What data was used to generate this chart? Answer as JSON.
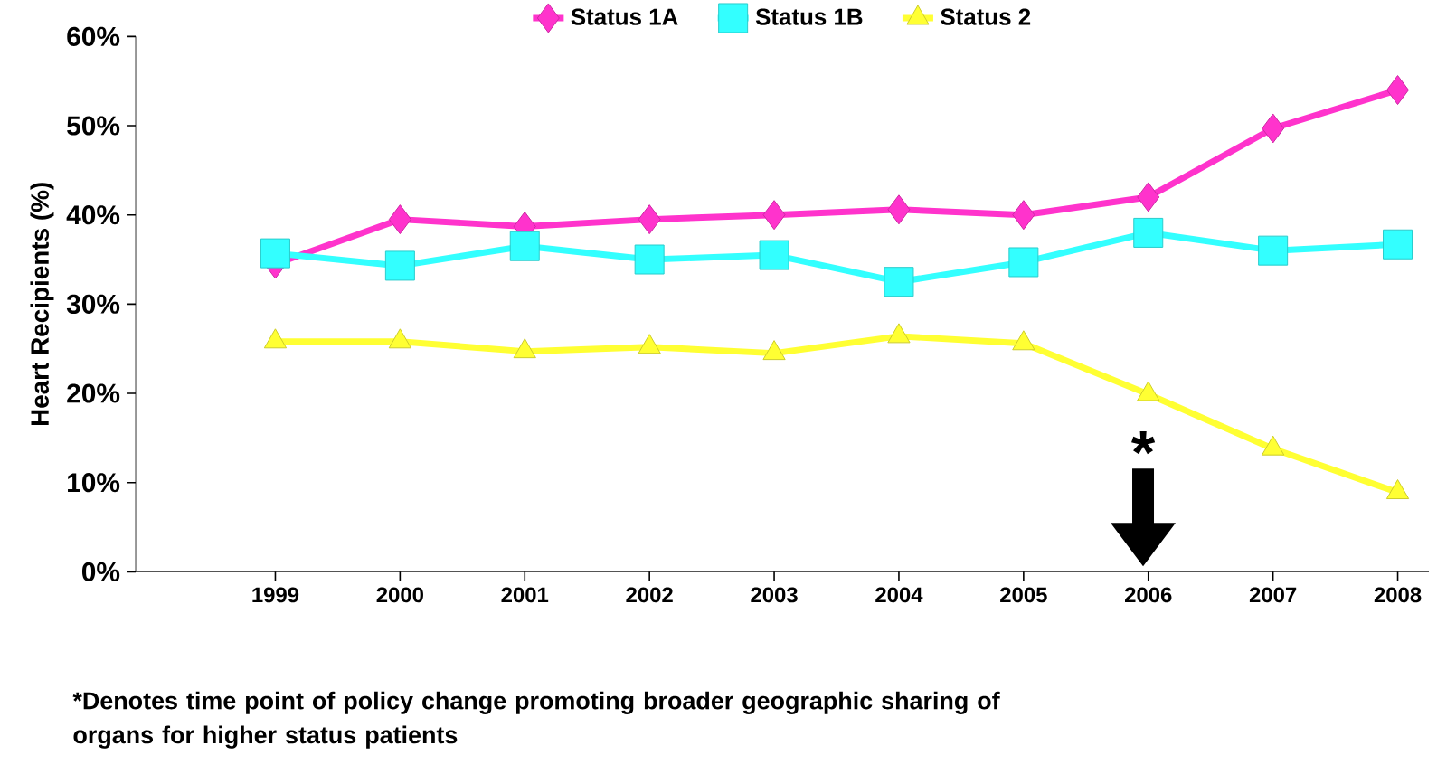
{
  "chart_data": {
    "type": "line",
    "ylabel": "Heart Recipients (%)",
    "categories": [
      "1999",
      "2000",
      "2001",
      "2002",
      "2003",
      "2004",
      "2005",
      "2006",
      "2007",
      "2008"
    ],
    "series": [
      {
        "name": "Status 1A",
        "color": "#ff33cc",
        "marker": "diamond",
        "values": [
          34.5,
          39.5,
          38.7,
          39.5,
          40,
          40.6,
          40,
          42,
          49.7,
          54
        ]
      },
      {
        "name": "Status 1B",
        "color": "#33ffff",
        "marker": "square",
        "values": [
          35.7,
          34.3,
          36.5,
          35,
          35.5,
          32.5,
          34.7,
          38,
          36,
          36.7
        ]
      },
      {
        "name": "Status 2",
        "color": "#ffff33",
        "marker": "triangle",
        "values": [
          25.8,
          25.8,
          24.7,
          25.2,
          24.5,
          26.4,
          25.6,
          19.9,
          13.8,
          8.9
        ]
      }
    ],
    "ylim": [
      0,
      60
    ],
    "yticks": [
      {
        "value": 0,
        "label": "0%"
      },
      {
        "value": 10,
        "label": "10%"
      },
      {
        "value": 20,
        "label": "20%"
      },
      {
        "value": 30,
        "label": "30%"
      },
      {
        "value": 40,
        "label": "40%"
      },
      {
        "value": 50,
        "label": "50%"
      },
      {
        "value": 60,
        "label": "60%"
      }
    ],
    "legend": "top",
    "grid": false,
    "annotations": [
      "*",
      "*Denotes time point of policy change promoting broader geographic sharing of organs for higher status patients"
    ]
  }
}
